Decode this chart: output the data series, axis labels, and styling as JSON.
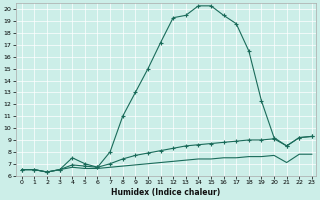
{
  "xlabel": "Humidex (Indice chaleur)",
  "bg_color": "#cceee8",
  "line_color": "#1a6b5a",
  "ylim": [
    6,
    20.5
  ],
  "xlim": [
    -0.5,
    23.3
  ],
  "yticks": [
    6,
    7,
    8,
    9,
    10,
    11,
    12,
    13,
    14,
    15,
    16,
    17,
    18,
    19,
    20
  ],
  "xticks": [
    0,
    1,
    2,
    3,
    4,
    5,
    6,
    7,
    8,
    9,
    10,
    11,
    12,
    13,
    14,
    15,
    16,
    17,
    18,
    19,
    20,
    21,
    22,
    23
  ],
  "curve1_x": [
    0,
    1,
    2,
    3,
    4,
    5,
    6,
    7,
    8,
    9,
    10,
    11,
    12,
    13,
    14,
    15,
    16,
    17,
    18,
    19,
    20,
    21,
    22,
    23
  ],
  "curve1_y": [
    6.5,
    6.5,
    6.3,
    6.5,
    7.5,
    7.0,
    6.7,
    8.0,
    11.0,
    13.0,
    15.0,
    17.2,
    19.3,
    19.5,
    20.3,
    20.3,
    19.5,
    18.8,
    16.5,
    12.3,
    9.2,
    8.5,
    9.2,
    9.3
  ],
  "curve2_x": [
    0,
    1,
    2,
    3,
    4,
    5,
    6,
    7,
    8,
    9,
    10,
    11,
    12,
    13,
    14,
    15,
    16,
    17,
    18,
    19,
    20,
    21,
    22,
    23
  ],
  "curve2_y": [
    6.5,
    6.5,
    6.3,
    6.5,
    6.9,
    6.8,
    6.7,
    7.0,
    7.4,
    7.7,
    7.9,
    8.1,
    8.3,
    8.5,
    8.6,
    8.7,
    8.8,
    8.9,
    9.0,
    9.0,
    9.1,
    8.5,
    9.2,
    9.3
  ],
  "curve3_x": [
    0,
    1,
    2,
    3,
    4,
    5,
    6,
    7,
    8,
    9,
    10,
    11,
    12,
    13,
    14,
    15,
    16,
    17,
    18,
    19,
    20,
    21,
    22,
    23
  ],
  "curve3_y": [
    6.5,
    6.5,
    6.3,
    6.5,
    6.7,
    6.6,
    6.6,
    6.7,
    6.8,
    6.9,
    7.0,
    7.1,
    7.2,
    7.3,
    7.4,
    7.4,
    7.5,
    7.5,
    7.6,
    7.6,
    7.7,
    7.1,
    7.8,
    7.8
  ]
}
